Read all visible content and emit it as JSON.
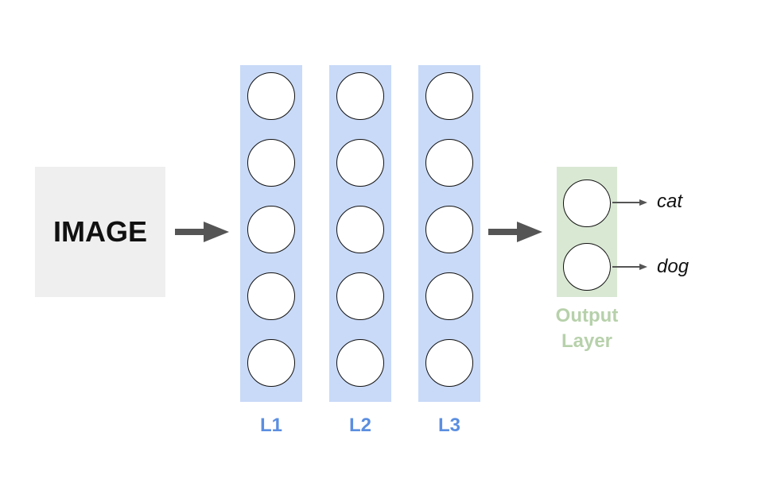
{
  "input": {
    "label": "IMAGE"
  },
  "layers": [
    {
      "label": "L1",
      "neurons": 5
    },
    {
      "label": "L2",
      "neurons": 5
    },
    {
      "label": "L3",
      "neurons": 5
    }
  ],
  "output_layer": {
    "label_line1": "Output",
    "label_line2": "Layer",
    "classes": [
      "cat",
      "dog"
    ]
  },
  "colors": {
    "hidden_layer_fill": "#c9daf8",
    "hidden_layer_label": "#5b8ee0",
    "output_layer_fill": "#d9e8d3",
    "output_layer_label": "#b7d1ab",
    "input_fill": "#efefef",
    "arrow": "#555555"
  }
}
